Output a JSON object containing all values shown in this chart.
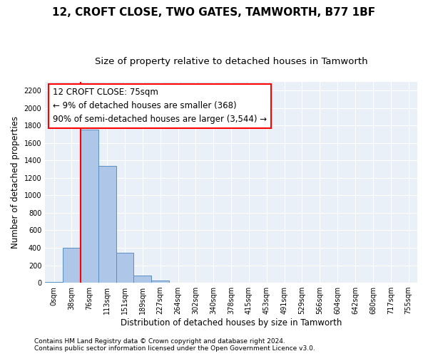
{
  "title": "12, CROFT CLOSE, TWO GATES, TAMWORTH, B77 1BF",
  "subtitle": "Size of property relative to detached houses in Tamworth",
  "xlabel": "Distribution of detached houses by size in Tamworth",
  "ylabel": "Number of detached properties",
  "bar_labels": [
    "0sqm",
    "38sqm",
    "76sqm",
    "113sqm",
    "151sqm",
    "189sqm",
    "227sqm",
    "264sqm",
    "302sqm",
    "340sqm",
    "378sqm",
    "415sqm",
    "453sqm",
    "491sqm",
    "529sqm",
    "566sqm",
    "604sqm",
    "642sqm",
    "680sqm",
    "717sqm",
    "755sqm"
  ],
  "bar_values": [
    10,
    400,
    1750,
    1340,
    340,
    80,
    25,
    0,
    0,
    0,
    0,
    0,
    0,
    0,
    0,
    0,
    0,
    0,
    0,
    0,
    0
  ],
  "bar_color": "#aec6e8",
  "bar_edge_color": "#5a8fc2",
  "red_line_x": 2,
  "ylim": [
    0,
    2300
  ],
  "yticks": [
    0,
    200,
    400,
    600,
    800,
    1000,
    1200,
    1400,
    1600,
    1800,
    2000,
    2200
  ],
  "annotation_text": "12 CROFT CLOSE: 75sqm\n← 9% of detached houses are smaller (368)\n90% of semi-detached houses are larger (3,544) →",
  "footnote1": "Contains HM Land Registry data © Crown copyright and database right 2024.",
  "footnote2": "Contains public sector information licensed under the Open Government Licence v3.0.",
  "title_fontsize": 11,
  "subtitle_fontsize": 9.5,
  "axis_label_fontsize": 8.5,
  "tick_fontsize": 7,
  "annotation_fontsize": 8.5,
  "footnote_fontsize": 6.5
}
